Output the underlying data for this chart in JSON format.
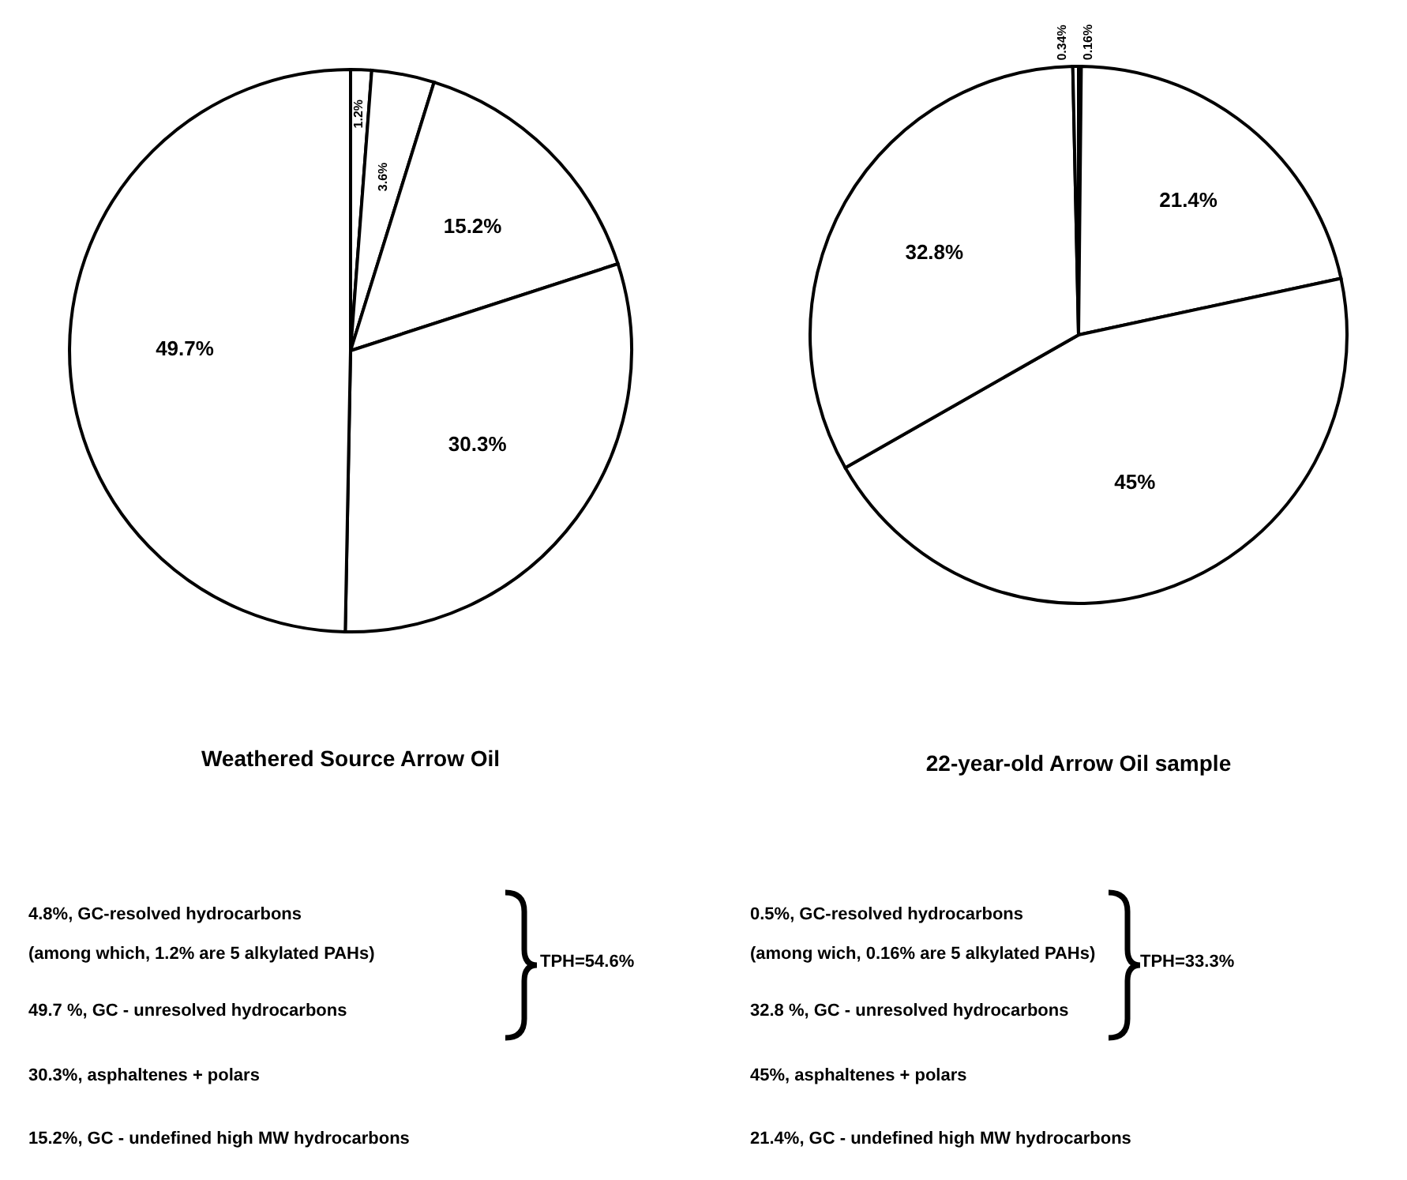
{
  "chart_data": [
    {
      "type": "pie",
      "title": "Weathered Source Arrow Oil",
      "categories": [
        null,
        null,
        null,
        null,
        null
      ],
      "values": [
        1.2,
        3.6,
        15.2,
        30.3,
        49.7
      ],
      "colors": [
        "#ffffff",
        "#ffffff",
        "#ffffff",
        "#ffffff",
        "#ffffff"
      ],
      "value_labels": [
        "1.2%",
        "3.6%",
        "15.2%",
        "30.3%",
        "49.7%"
      ],
      "annotations": [
        "4.8%, GC-resolved hydrocarbons",
        "(among which, 1.2% are 5 alkylated PAHs)",
        "49.7 %, GC - unresolved hydrocarbons",
        "30.3%, asphaltenes + polars",
        "15.2%, GC - undefined high MW hydrocarbons",
        "TPH=54.6%"
      ]
    },
    {
      "type": "pie",
      "title": "22-year-old Arrow Oil sample",
      "categories": [
        null,
        null,
        null,
        null,
        null
      ],
      "values": [
        0.16,
        21.4,
        45,
        32.8,
        0.34
      ],
      "colors": [
        "#000000",
        "#ffffff",
        "#ffffff",
        "#ffffff",
        "#ffffff"
      ],
      "value_labels": [
        "0.16%",
        "21.4%",
        "45%",
        "32.8%",
        "0.34%"
      ],
      "annotations": [
        "0.5%, GC-resolved hydrocarbons",
        "(among wich, 0.16% are 5 alkylated PAHs)",
        "32.8 %, GC - unresolved hydrocarbons",
        "45%, asphaltenes + polars",
        "21.4%, GC - undefined high MW hydrocarbons",
        "TPH=33.3%"
      ]
    }
  ]
}
